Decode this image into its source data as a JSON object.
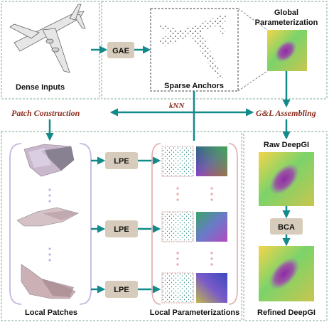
{
  "labels": {
    "dense_inputs": "Dense Inputs",
    "gae": "GAE",
    "sparse_anchors": "Sparse Anchors",
    "global_param_line1": "Global",
    "global_param_line2": "Parameterization",
    "patch_construction": "Patch Construction",
    "knn": "kNN",
    "gl_assembling": "G&L Assembling",
    "lpe": "LPE",
    "raw_deepgi": "Raw DeepGI",
    "bca": "BCA",
    "refined_deepgi": "Refined DeepGI",
    "local_patches": "Local Patches",
    "local_parameterizations": "Local Parameterizations"
  },
  "colors": {
    "panel_border": "#a9c7b3",
    "arrow": "#138a8a",
    "module_box": "#d7ccbb",
    "accent_red": "#8b2e1f",
    "dot_pink": "#e8a8a8",
    "dot_purple": "#c5b0dd"
  }
}
